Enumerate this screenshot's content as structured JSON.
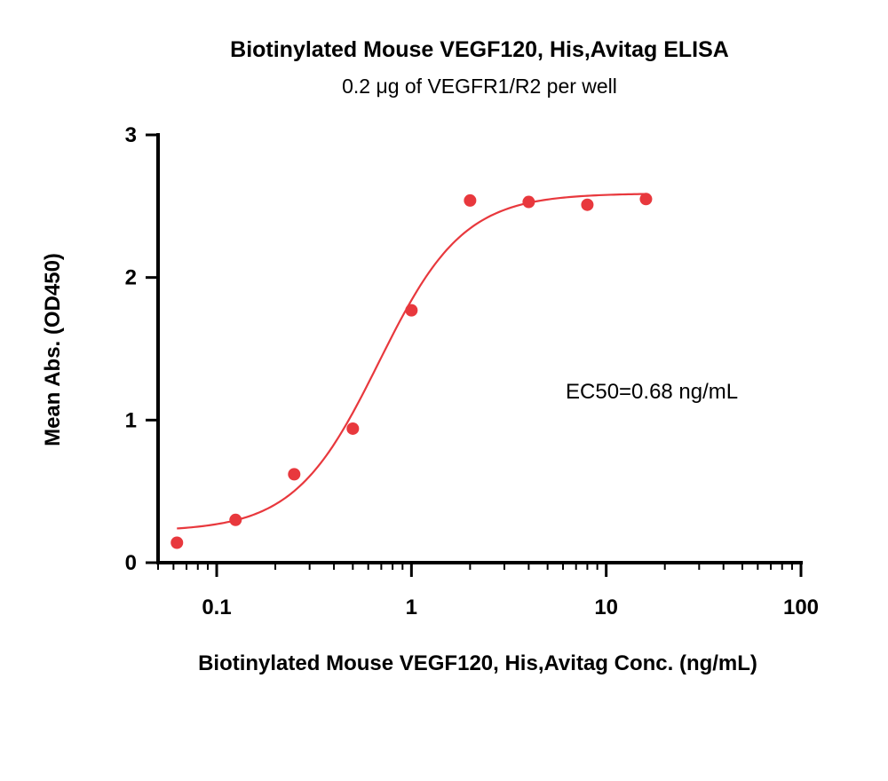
{
  "chart_data": {
    "type": "scatter",
    "title": "Biotinylated Mouse VEGF120, His,Avitag ELISA",
    "subtitle": "0.2 μg of VEGFR1/R2 per well",
    "xlabel": "Biotinylated Mouse VEGF120, His,Avitag Conc. (ng/mL)",
    "ylabel": "Mean Abs. (OD450)",
    "xscale": "log",
    "xlim": [
      0.05,
      100
    ],
    "ylim": [
      0,
      3
    ],
    "x_ticks": [
      0.1,
      1,
      10,
      100
    ],
    "x_tick_labels": [
      "0.1",
      "1",
      "10",
      "100"
    ],
    "y_ticks": [
      0,
      1,
      2,
      3
    ],
    "y_tick_labels": [
      "0",
      "1",
      "2",
      "3"
    ],
    "grid": false,
    "legend": "none",
    "annotation": "EC50=0.68 ng/mL",
    "color": "#e8383d",
    "points": {
      "x": [
        0.0625,
        0.125,
        0.25,
        0.5,
        1,
        2,
        4,
        8,
        16
      ],
      "y": [
        0.14,
        0.3,
        0.62,
        0.94,
        1.77,
        2.54,
        2.53,
        2.51,
        2.55
      ]
    },
    "fit_curve": {
      "model": "4PL",
      "bottom": 0.22,
      "top": 2.59,
      "ec50": 0.68,
      "hill_slope": 2.0,
      "x_range": [
        0.0625,
        16
      ]
    }
  }
}
